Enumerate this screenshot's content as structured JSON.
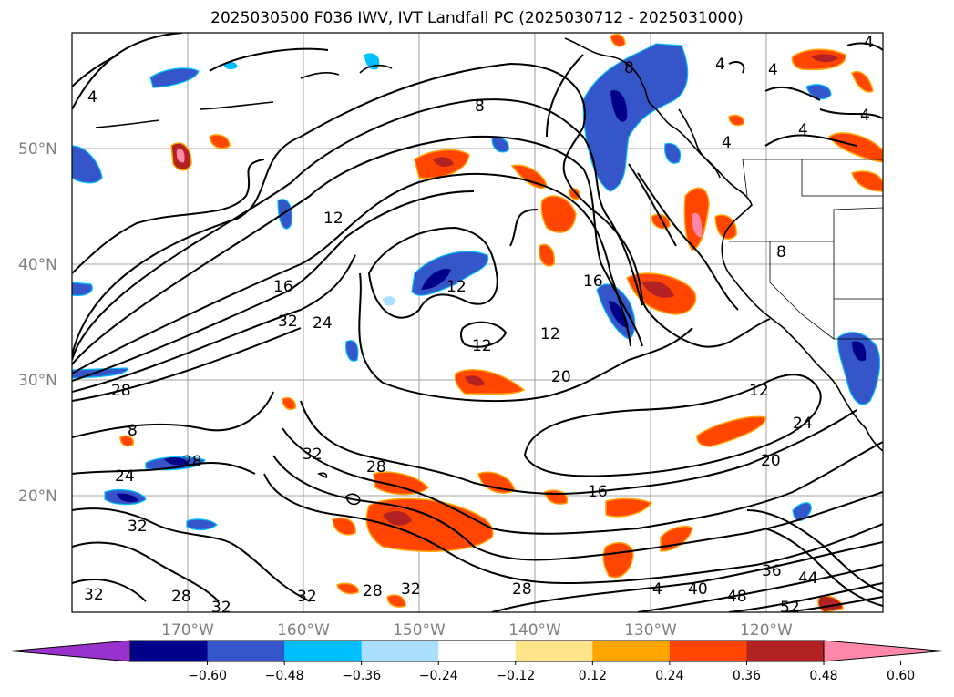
{
  "title": "2025030500 F036 IWV, IVT Landfall PC (2025030712 - 2025031000)",
  "map": {
    "lat_labels": [
      "50°N",
      "40°N",
      "30°N",
      "20°N"
    ],
    "lon_labels": [
      "170°W",
      "160°W",
      "150°W",
      "140°W",
      "130°W",
      "120°W"
    ],
    "contour_values": [
      "4",
      "8",
      "12",
      "16",
      "20",
      "24",
      "28",
      "32",
      "36",
      "40",
      "44",
      "48",
      "52"
    ]
  },
  "colorbar": {
    "ticks": [
      "−0.60",
      "−0.48",
      "−0.36",
      "−0.24",
      "−0.12",
      "0.12",
      "0.24",
      "0.36",
      "0.48",
      "0.60"
    ],
    "colors": [
      "#9932cc",
      "#00008b",
      "#3456c8",
      "#00bfff",
      "#aadfff",
      "#ffffff",
      "#ffe58a",
      "#ffa500",
      "#ff4500",
      "#b22222",
      "#ff88aa"
    ]
  },
  "contour_labels": [
    {
      "text": "4"
    },
    {
      "text": "8"
    },
    {
      "text": "4"
    },
    {
      "text": "4"
    },
    {
      "text": "4"
    },
    {
      "text": "4"
    },
    {
      "text": "4"
    },
    {
      "text": "8"
    },
    {
      "text": "12"
    },
    {
      "text": "16"
    },
    {
      "text": "32"
    },
    {
      "text": "24"
    },
    {
      "text": "12"
    },
    {
      "text": "16"
    },
    {
      "text": "12"
    },
    {
      "text": "12"
    },
    {
      "text": "20"
    },
    {
      "text": "28"
    },
    {
      "text": "12"
    },
    {
      "text": "24"
    },
    {
      "text": "20"
    },
    {
      "text": "8"
    },
    {
      "text": "28"
    },
    {
      "text": "24"
    },
    {
      "text": "28"
    },
    {
      "text": "32"
    },
    {
      "text": "16"
    },
    {
      "text": "32"
    },
    {
      "text": "32"
    },
    {
      "text": "28"
    },
    {
      "text": "32"
    },
    {
      "text": "32"
    },
    {
      "text": "28"
    },
    {
      "text": "28"
    },
    {
      "text": "32"
    },
    {
      "text": "40"
    },
    {
      "text": "48"
    },
    {
      "text": "36"
    },
    {
      "text": "44"
    },
    {
      "text": "52"
    },
    {
      "text": "4"
    },
    {
      "text": "8"
    },
    {
      "text": "4"
    }
  ]
}
